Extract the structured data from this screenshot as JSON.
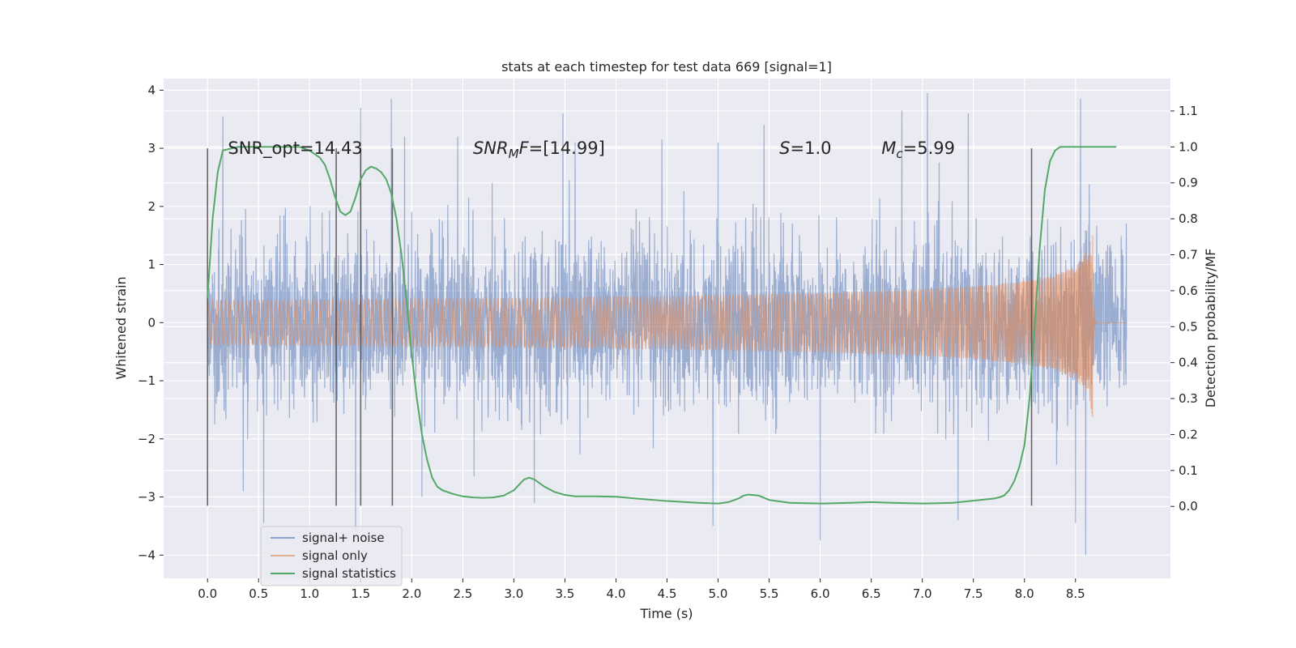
{
  "chart_data": {
    "type": "line",
    "title": "stats at each timestep for test data 669 [signal=1]",
    "xlabel": "Time (s)",
    "ylabel_left": "Whitened strain",
    "ylabel_right": "Detection probability/MF",
    "xlim": [
      -0.43,
      9.43
    ],
    "ylim_left": [
      -4.4,
      4.2
    ],
    "ylim_right": [
      -0.2,
      1.19
    ],
    "x_ticks": [
      "0.0",
      "0.5",
      "1.0",
      "1.5",
      "2.0",
      "2.5",
      "3.0",
      "3.5",
      "4.0",
      "4.5",
      "5.0",
      "5.5",
      "6.0",
      "6.5",
      "7.0",
      "7.5",
      "8.0",
      "8.5"
    ],
    "x_tick_values": [
      0,
      0.5,
      1,
      1.5,
      2,
      2.5,
      3,
      3.5,
      4,
      4.5,
      5,
      5.5,
      6,
      6.5,
      7,
      7.5,
      8,
      8.5
    ],
    "y_left_ticks": [
      "4",
      "3",
      "2",
      "1",
      "0",
      "−1",
      "−2",
      "−3",
      "−4"
    ],
    "y_left_tick_values": [
      4,
      3,
      2,
      1,
      0,
      -1,
      -2,
      -3,
      -4
    ],
    "y_right_ticks": [
      "1.1",
      "1.0",
      "0.9",
      "0.8",
      "0.7",
      "0.6",
      "0.5",
      "0.4",
      "0.3",
      "0.2",
      "0.1",
      "0.0"
    ],
    "y_right_tick_values": [
      1.1,
      1.0,
      0.9,
      0.8,
      0.7,
      0.6,
      0.5,
      0.4,
      0.3,
      0.2,
      0.1,
      0.0
    ],
    "grid": true,
    "annotations": [
      {
        "id": "snr-opt",
        "x": 0.2,
        "y": 3.0,
        "parts": [
          {
            "text": "SNR_opt=14.43"
          }
        ]
      },
      {
        "id": "snr-mf",
        "x": 2.6,
        "y": 3.0,
        "parts": [
          {
            "text": "SNR",
            "italic": true
          },
          {
            "text": "M",
            "italic": true,
            "sub": true
          },
          {
            "text": "F",
            "italic": true
          },
          {
            "text": "=[14.99]"
          }
        ]
      },
      {
        "id": "s-value",
        "x": 5.6,
        "y": 3.0,
        "parts": [
          {
            "text": "S",
            "italic": true
          },
          {
            "text": "=1.0"
          }
        ]
      },
      {
        "id": "mc-value",
        "x": 6.6,
        "y": 3.0,
        "parts": [
          {
            "text": "M",
            "italic": true
          },
          {
            "text": "c",
            "italic": true,
            "sub": true
          },
          {
            "text": "=5.99"
          }
        ]
      }
    ],
    "vertical_markers": [
      0.0,
      1.26,
      1.5,
      1.81,
      8.07
    ],
    "vertical_marker_range": [
      -3.15,
      3.0
    ],
    "series": [
      {
        "name": "signal+ noise",
        "color": "#4c72b0",
        "axis": "left",
        "kind": "noise",
        "t_start": 0.0,
        "t_end": 9.0,
        "std": 0.72,
        "peaks": [
          {
            "t": 0.15,
            "v": 3.55
          },
          {
            "t": 1.5,
            "v": 3.7
          },
          {
            "t": 1.8,
            "v": 3.85
          },
          {
            "t": 1.93,
            "v": 3.2
          },
          {
            "t": 2.45,
            "v": 3.2
          },
          {
            "t": 3.48,
            "v": 3.6
          },
          {
            "t": 3.6,
            "v": 3.1
          },
          {
            "t": 4.45,
            "v": 3.15
          },
          {
            "t": 5.0,
            "v": 3.1
          },
          {
            "t": 5.45,
            "v": 3.4
          },
          {
            "t": 6.8,
            "v": 3.65
          },
          {
            "t": 7.05,
            "v": 3.95
          },
          {
            "t": 7.45,
            "v": 3.6
          },
          {
            "t": 8.55,
            "v": 3.85
          },
          {
            "t": 0.55,
            "v": -3.45
          },
          {
            "t": 1.45,
            "v": -3.6
          },
          {
            "t": 2.1,
            "v": -3.0
          },
          {
            "t": 4.95,
            "v": -3.5
          },
          {
            "t": 6.0,
            "v": -3.75
          },
          {
            "t": 7.35,
            "v": -3.4
          },
          {
            "t": 8.5,
            "v": -3.45
          },
          {
            "t": 8.6,
            "v": -4.0
          },
          {
            "t": 0.35,
            "v": -2.9
          },
          {
            "t": 3.2,
            "v": -3.1
          }
        ]
      },
      {
        "name": "signal only",
        "color": "#dd8452",
        "axis": "left",
        "kind": "chirp",
        "t_start": 0.0,
        "t_merge": 8.67,
        "t_end": 9.0,
        "peak_amplitude": 1.75
      },
      {
        "name": "signal statistics",
        "color": "#55a868",
        "axis": "right",
        "kind": "line",
        "x": [
          0.0,
          0.05,
          0.1,
          0.15,
          0.3,
          0.5,
          0.7,
          0.9,
          1.0,
          1.1,
          1.15,
          1.2,
          1.25,
          1.3,
          1.35,
          1.4,
          1.45,
          1.5,
          1.55,
          1.6,
          1.65,
          1.7,
          1.75,
          1.8,
          1.85,
          1.9,
          1.95,
          2.0,
          2.05,
          2.1,
          2.15,
          2.2,
          2.25,
          2.3,
          2.4,
          2.5,
          2.6,
          2.7,
          2.8,
          2.9,
          3.0,
          3.05,
          3.1,
          3.15,
          3.2,
          3.3,
          3.4,
          3.5,
          3.6,
          3.8,
          4.0,
          4.2,
          4.5,
          4.8,
          5.0,
          5.1,
          5.2,
          5.25,
          5.3,
          5.4,
          5.5,
          5.7,
          6.0,
          6.3,
          6.5,
          6.7,
          7.0,
          7.3,
          7.5,
          7.7,
          7.75,
          7.8,
          7.85,
          7.9,
          7.95,
          8.0,
          8.05,
          8.1,
          8.15,
          8.2,
          8.25,
          8.3,
          8.35,
          8.4,
          8.5,
          8.7,
          8.9
        ],
        "y": [
          0.58,
          0.8,
          0.93,
          0.99,
          1.0,
          1.0,
          1.0,
          1.0,
          0.99,
          0.97,
          0.95,
          0.91,
          0.86,
          0.82,
          0.81,
          0.82,
          0.86,
          0.91,
          0.935,
          0.945,
          0.94,
          0.93,
          0.91,
          0.87,
          0.8,
          0.7,
          0.57,
          0.42,
          0.3,
          0.2,
          0.13,
          0.08,
          0.055,
          0.045,
          0.035,
          0.028,
          0.025,
          0.024,
          0.025,
          0.03,
          0.045,
          0.06,
          0.075,
          0.08,
          0.075,
          0.055,
          0.04,
          0.032,
          0.028,
          0.028,
          0.027,
          0.022,
          0.015,
          0.01,
          0.008,
          0.012,
          0.022,
          0.03,
          0.033,
          0.03,
          0.018,
          0.01,
          0.008,
          0.01,
          0.012,
          0.01,
          0.008,
          0.01,
          0.016,
          0.022,
          0.025,
          0.03,
          0.045,
          0.07,
          0.11,
          0.17,
          0.3,
          0.5,
          0.72,
          0.88,
          0.96,
          0.99,
          1.0,
          1.0,
          1.0,
          1.0,
          1.0
        ]
      }
    ],
    "legend": {
      "placement": "lower-left",
      "items": [
        {
          "label": "signal+ noise",
          "color": "#4c72b0"
        },
        {
          "label": "signal only",
          "color": "#dd8452"
        },
        {
          "label": "signal statistics",
          "color": "#55a868"
        }
      ]
    }
  }
}
